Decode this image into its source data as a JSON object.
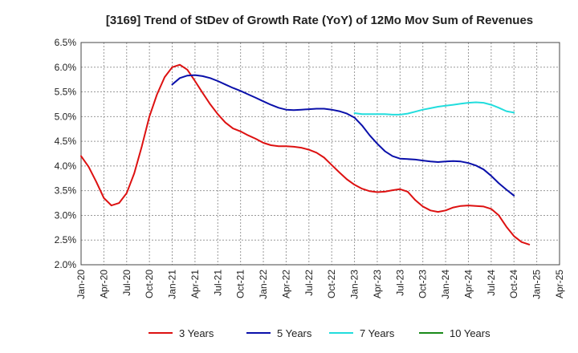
{
  "chart_data": {
    "type": "line",
    "title": "[3169]  Trend of StDev of Growth Rate (YoY) of 12Mo Mov Sum of Revenues",
    "xlabel": "",
    "ylabel": "",
    "x_ticks": [
      "Jan-20",
      "Apr-20",
      "Jul-20",
      "Oct-20",
      "Jan-21",
      "Apr-21",
      "Jul-21",
      "Oct-21",
      "Jan-22",
      "Apr-22",
      "Jul-22",
      "Oct-22",
      "Jan-23",
      "Apr-23",
      "Jul-23",
      "Oct-23",
      "Jan-24",
      "Apr-24",
      "Jul-24",
      "Oct-24",
      "Jan-25",
      "Apr-25"
    ],
    "y_ticks": [
      "2.0%",
      "2.5%",
      "3.0%",
      "3.5%",
      "4.0%",
      "4.5%",
      "5.0%",
      "5.5%",
      "6.0%",
      "6.5%"
    ],
    "ylim": [
      2.0,
      6.5
    ],
    "x_range_months": [
      0,
      63
    ],
    "grid": true,
    "legend_position": "bottom",
    "series": [
      {
        "name": "3 Years",
        "color": "#dd1111",
        "start_month": 0,
        "values": [
          4.2,
          3.98,
          3.68,
          3.35,
          3.2,
          3.25,
          3.45,
          3.85,
          4.4,
          5.0,
          5.45,
          5.8,
          6.0,
          6.05,
          5.95,
          5.72,
          5.48,
          5.25,
          5.05,
          4.88,
          4.76,
          4.7,
          4.62,
          4.55,
          4.47,
          4.42,
          4.4,
          4.4,
          4.39,
          4.37,
          4.33,
          4.27,
          4.17,
          4.02,
          3.87,
          3.73,
          3.62,
          3.54,
          3.49,
          3.47,
          3.48,
          3.51,
          3.53,
          3.48,
          3.31,
          3.18,
          3.1,
          3.07,
          3.1,
          3.16,
          3.19,
          3.2,
          3.19,
          3.18,
          3.13,
          3.0,
          2.77,
          2.58,
          2.46,
          2.41
        ]
      },
      {
        "name": "5 Years",
        "color": "#0a10aa",
        "start_month": 12,
        "values": [
          5.65,
          5.78,
          5.83,
          5.84,
          5.82,
          5.78,
          5.72,
          5.65,
          5.58,
          5.52,
          5.45,
          5.38,
          5.31,
          5.24,
          5.18,
          5.14,
          5.13,
          5.14,
          5.15,
          5.16,
          5.16,
          5.14,
          5.11,
          5.06,
          4.98,
          4.82,
          4.62,
          4.45,
          4.3,
          4.2,
          4.15,
          4.14,
          4.13,
          4.11,
          4.09,
          4.08,
          4.09,
          4.1,
          4.09,
          4.06,
          4.01,
          3.93,
          3.8,
          3.65,
          3.52,
          3.4
        ]
      },
      {
        "name": "7 Years",
        "color": "#22dddd",
        "start_month": 36,
        "values": [
          5.07,
          5.05,
          5.05,
          5.05,
          5.05,
          5.04,
          5.04,
          5.06,
          5.1,
          5.14,
          5.17,
          5.2,
          5.22,
          5.24,
          5.26,
          5.28,
          5.29,
          5.28,
          5.24,
          5.18,
          5.11,
          5.08
        ]
      },
      {
        "name": "10 Years",
        "color": "#1a8a1a",
        "start_month": 0,
        "values": []
      }
    ]
  }
}
